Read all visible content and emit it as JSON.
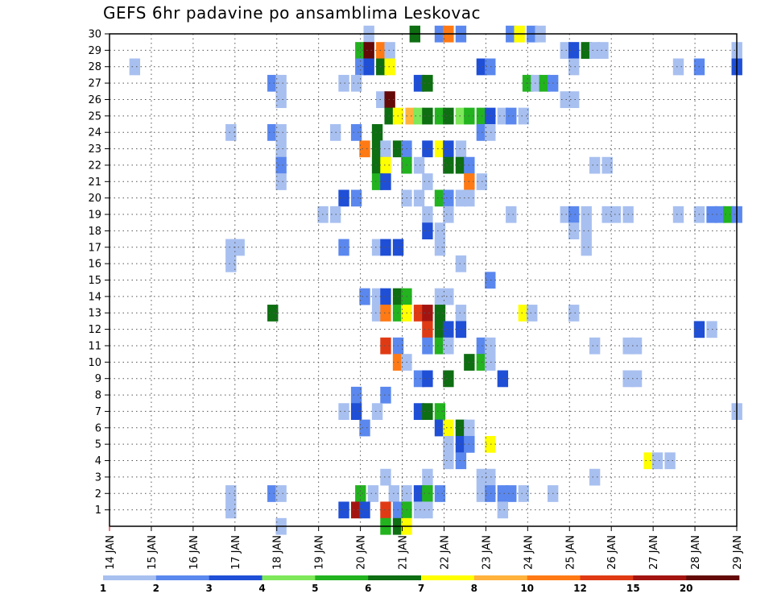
{
  "title": "GEFS 6hr padavine po ansamblima Leskovac",
  "chart_data": {
    "type": "heatmap",
    "title": "GEFS 6hr padavine po ansamblima Leskovac",
    "x_tick_labels": [
      "14 JAN",
      "15 JAN",
      "16 JAN",
      "17 JAN",
      "18 JAN",
      "19 JAN",
      "20 JAN",
      "21 JAN",
      "22 JAN",
      "23 JAN",
      "24 JAN",
      "25 JAN",
      "26 JAN",
      "27 JAN",
      "28 JAN",
      "29 JAN"
    ],
    "x_range_days": [
      14,
      29
    ],
    "x_step_hours": 6,
    "y_tick_labels": [
      "1",
      "2",
      "3",
      "4",
      "5",
      "6",
      "7",
      "8",
      "9",
      "10",
      "11",
      "12",
      "13",
      "14",
      "15",
      "16",
      "17",
      "18",
      "19",
      "20",
      "21",
      "22",
      "23",
      "24",
      "25",
      "26",
      "27",
      "28",
      "29",
      "30"
    ],
    "y_range": [
      0,
      30
    ],
    "grid": "dotted",
    "colorbar": {
      "labels": [
        "1",
        "2",
        "3",
        "4",
        "5",
        "6",
        "7",
        "8",
        "10",
        "12",
        "15",
        "20"
      ],
      "colors": [
        "#a8c0f0",
        "#5b88ee",
        "#1f4fd6",
        "#7ee85a",
        "#22b31f",
        "#0e6e12",
        "#ffff00",
        "#ffb23c",
        "#ff7a14",
        "#e03a14",
        "#a31411",
        "#650808"
      ]
    },
    "cells": [
      [
        20.2,
        30,
        0
      ],
      [
        21.3,
        30,
        5
      ],
      [
        21.9,
        30,
        1
      ],
      [
        22.1,
        30,
        8
      ],
      [
        22.4,
        30,
        1
      ],
      [
        23.6,
        30,
        1
      ],
      [
        23.8,
        30,
        6
      ],
      [
        24.1,
        30,
        1
      ],
      [
        24.3,
        30,
        0
      ],
      [
        20.0,
        29,
        4
      ],
      [
        20.2,
        29,
        11
      ],
      [
        20.5,
        29,
        8
      ],
      [
        20.7,
        29,
        0
      ],
      [
        24.9,
        29,
        0
      ],
      [
        25.1,
        29,
        2
      ],
      [
        25.4,
        29,
        5
      ],
      [
        25.6,
        29,
        0
      ],
      [
        25.8,
        29,
        0
      ],
      [
        29.0,
        29,
        0
      ],
      [
        14.6,
        28,
        0
      ],
      [
        20.0,
        28,
        1
      ],
      [
        20.2,
        28,
        2
      ],
      [
        20.5,
        28,
        5
      ],
      [
        20.7,
        28,
        6
      ],
      [
        22.9,
        28,
        2
      ],
      [
        23.1,
        28,
        1
      ],
      [
        25.1,
        28,
        0
      ],
      [
        27.6,
        28,
        0
      ],
      [
        28.1,
        28,
        1
      ],
      [
        29.0,
        28,
        2
      ],
      [
        17.9,
        27,
        1
      ],
      [
        18.1,
        27,
        0
      ],
      [
        19.6,
        27,
        0
      ],
      [
        19.9,
        27,
        0
      ],
      [
        21.4,
        27,
        2
      ],
      [
        21.6,
        27,
        5
      ],
      [
        24.0,
        27,
        4
      ],
      [
        24.2,
        27,
        0
      ],
      [
        24.4,
        27,
        4
      ],
      [
        24.6,
        27,
        1
      ],
      [
        18.1,
        26,
        0
      ],
      [
        20.5,
        26,
        0
      ],
      [
        20.7,
        26,
        11
      ],
      [
        24.9,
        26,
        0
      ],
      [
        25.1,
        26,
        0
      ],
      [
        20.7,
        25,
        5
      ],
      [
        20.9,
        25,
        6
      ],
      [
        21.2,
        25,
        7
      ],
      [
        21.4,
        25,
        3
      ],
      [
        21.6,
        25,
        5
      ],
      [
        21.9,
        25,
        4
      ],
      [
        22.1,
        25,
        5
      ],
      [
        22.4,
        25,
        3
      ],
      [
        22.6,
        25,
        4
      ],
      [
        22.9,
        25,
        4
      ],
      [
        23.1,
        25,
        2
      ],
      [
        23.4,
        25,
        0
      ],
      [
        23.6,
        25,
        1
      ],
      [
        23.9,
        25,
        0
      ],
      [
        16.9,
        24,
        0
      ],
      [
        17.9,
        24,
        1
      ],
      [
        18.1,
        24,
        0
      ],
      [
        19.4,
        24,
        0
      ],
      [
        19.9,
        24,
        1
      ],
      [
        20.4,
        24,
        5
      ],
      [
        22.9,
        24,
        1
      ],
      [
        23.1,
        24,
        0
      ],
      [
        18.1,
        23,
        0
      ],
      [
        20.1,
        23,
        8
      ],
      [
        20.4,
        23,
        5
      ],
      [
        20.6,
        23,
        0
      ],
      [
        20.9,
        23,
        5
      ],
      [
        21.1,
        23,
        1
      ],
      [
        21.6,
        23,
        2
      ],
      [
        21.9,
        23,
        6
      ],
      [
        22.1,
        23,
        2
      ],
      [
        22.4,
        23,
        0
      ],
      [
        18.1,
        22,
        1
      ],
      [
        20.4,
        22,
        5
      ],
      [
        20.6,
        22,
        6
      ],
      [
        21.1,
        22,
        4
      ],
      [
        21.4,
        22,
        0
      ],
      [
        22.1,
        22,
        5
      ],
      [
        22.4,
        22,
        5
      ],
      [
        22.6,
        22,
        1
      ],
      [
        25.6,
        22,
        0
      ],
      [
        25.9,
        22,
        0
      ],
      [
        18.1,
        21,
        0
      ],
      [
        20.4,
        21,
        4
      ],
      [
        20.6,
        21,
        2
      ],
      [
        21.6,
        21,
        0
      ],
      [
        22.6,
        21,
        8
      ],
      [
        22.9,
        21,
        0
      ],
      [
        19.6,
        20,
        2
      ],
      [
        19.9,
        20,
        1
      ],
      [
        21.1,
        20,
        0
      ],
      [
        21.4,
        20,
        0
      ],
      [
        21.9,
        20,
        4
      ],
      [
        22.1,
        20,
        1
      ],
      [
        22.4,
        20,
        0
      ],
      [
        22.6,
        20,
        0
      ],
      [
        19.1,
        19,
        0
      ],
      [
        19.4,
        19,
        0
      ],
      [
        21.6,
        19,
        0
      ],
      [
        22.1,
        19,
        0
      ],
      [
        23.6,
        19,
        0
      ],
      [
        24.9,
        19,
        0
      ],
      [
        25.1,
        19,
        1
      ],
      [
        25.4,
        19,
        0
      ],
      [
        25.9,
        19,
        0
      ],
      [
        26.1,
        19,
        0
      ],
      [
        26.4,
        19,
        0
      ],
      [
        27.6,
        19,
        0
      ],
      [
        28.1,
        19,
        0
      ],
      [
        28.4,
        19,
        1
      ],
      [
        28.6,
        19,
        1
      ],
      [
        28.8,
        19,
        4
      ],
      [
        29.0,
        19,
        1
      ],
      [
        21.6,
        18,
        2
      ],
      [
        21.9,
        18,
        0
      ],
      [
        25.1,
        18,
        0
      ],
      [
        25.4,
        18,
        0
      ],
      [
        16.9,
        17,
        0
      ],
      [
        17.1,
        17,
        0
      ],
      [
        19.6,
        17,
        1
      ],
      [
        20.4,
        17,
        0
      ],
      [
        20.6,
        17,
        2
      ],
      [
        20.9,
        17,
        2
      ],
      [
        21.9,
        17,
        0
      ],
      [
        25.4,
        17,
        0
      ],
      [
        16.9,
        16,
        0
      ],
      [
        22.4,
        16,
        0
      ],
      [
        23.1,
        15,
        1
      ],
      [
        20.1,
        14,
        1
      ],
      [
        20.4,
        14,
        0
      ],
      [
        20.6,
        14,
        2
      ],
      [
        20.9,
        14,
        5
      ],
      [
        21.1,
        14,
        4
      ],
      [
        21.9,
        14,
        0
      ],
      [
        22.1,
        14,
        0
      ],
      [
        17.9,
        13,
        5
      ],
      [
        20.4,
        13,
        0
      ],
      [
        20.6,
        13,
        8
      ],
      [
        20.9,
        13,
        4
      ],
      [
        21.1,
        13,
        6
      ],
      [
        21.4,
        13,
        9
      ],
      [
        21.6,
        13,
        10
      ],
      [
        21.9,
        13,
        5
      ],
      [
        22.4,
        13,
        0
      ],
      [
        23.9,
        13,
        6
      ],
      [
        24.1,
        13,
        0
      ],
      [
        25.1,
        13,
        0
      ],
      [
        21.6,
        12,
        9
      ],
      [
        21.9,
        12,
        5
      ],
      [
        22.1,
        12,
        2
      ],
      [
        22.4,
        12,
        2
      ],
      [
        28.1,
        12,
        2
      ],
      [
        28.4,
        12,
        0
      ],
      [
        20.6,
        11,
        9
      ],
      [
        20.9,
        11,
        1
      ],
      [
        21.6,
        11,
        1
      ],
      [
        21.9,
        11,
        4
      ],
      [
        22.1,
        11,
        0
      ],
      [
        22.9,
        11,
        1
      ],
      [
        23.1,
        11,
        0
      ],
      [
        25.6,
        11,
        0
      ],
      [
        26.4,
        11,
        0
      ],
      [
        26.6,
        11,
        0
      ],
      [
        20.9,
        10,
        8
      ],
      [
        21.1,
        10,
        0
      ],
      [
        22.6,
        10,
        5
      ],
      [
        22.9,
        10,
        4
      ],
      [
        23.1,
        10,
        0
      ],
      [
        21.4,
        9,
        1
      ],
      [
        21.6,
        9,
        2
      ],
      [
        22.1,
        9,
        5
      ],
      [
        23.4,
        9,
        2
      ],
      [
        26.4,
        9,
        0
      ],
      [
        26.6,
        9,
        0
      ],
      [
        19.9,
        8,
        1
      ],
      [
        20.6,
        8,
        1
      ],
      [
        19.6,
        7,
        0
      ],
      [
        19.9,
        7,
        2
      ],
      [
        20.4,
        7,
        0
      ],
      [
        21.4,
        7,
        2
      ],
      [
        21.6,
        7,
        5
      ],
      [
        21.9,
        7,
        4
      ],
      [
        29.0,
        7,
        0
      ],
      [
        20.1,
        6,
        1
      ],
      [
        21.9,
        6,
        2
      ],
      [
        22.1,
        6,
        6
      ],
      [
        22.4,
        6,
        5
      ],
      [
        22.6,
        6,
        0
      ],
      [
        22.1,
        5,
        0
      ],
      [
        22.4,
        5,
        2
      ],
      [
        22.6,
        5,
        1
      ],
      [
        23.1,
        5,
        6
      ],
      [
        22.1,
        4,
        0
      ],
      [
        22.4,
        4,
        1
      ],
      [
        26.9,
        4,
        6
      ],
      [
        27.1,
        4,
        0
      ],
      [
        27.4,
        4,
        0
      ],
      [
        20.6,
        3,
        0
      ],
      [
        21.6,
        3,
        0
      ],
      [
        22.9,
        3,
        0
      ],
      [
        23.1,
        3,
        0
      ],
      [
        25.6,
        3,
        0
      ],
      [
        16.9,
        2,
        0
      ],
      [
        17.9,
        2,
        1
      ],
      [
        18.1,
        2,
        0
      ],
      [
        20.0,
        2,
        4
      ],
      [
        20.3,
        2,
        0
      ],
      [
        20.8,
        2,
        0
      ],
      [
        21.1,
        2,
        0
      ],
      [
        21.4,
        2,
        2
      ],
      [
        21.6,
        2,
        4
      ],
      [
        21.9,
        2,
        1
      ],
      [
        22.9,
        2,
        0
      ],
      [
        23.1,
        2,
        1
      ],
      [
        23.4,
        2,
        1
      ],
      [
        23.6,
        2,
        1
      ],
      [
        23.9,
        2,
        0
      ],
      [
        24.6,
        2,
        0
      ],
      [
        16.9,
        1,
        0
      ],
      [
        19.6,
        1,
        2
      ],
      [
        19.9,
        1,
        10
      ],
      [
        20.1,
        1,
        2
      ],
      [
        20.6,
        1,
        9
      ],
      [
        20.9,
        1,
        1
      ],
      [
        21.1,
        1,
        4
      ],
      [
        21.4,
        1,
        0
      ],
      [
        21.6,
        1,
        0
      ],
      [
        23.4,
        1,
        0
      ],
      [
        18.1,
        0,
        0
      ],
      [
        20.6,
        0,
        4
      ],
      [
        20.9,
        0,
        5
      ],
      [
        21.1,
        0,
        6
      ]
    ]
  }
}
